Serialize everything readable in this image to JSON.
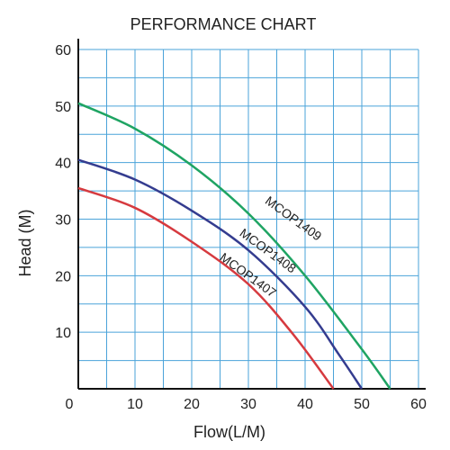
{
  "chart_data": {
    "type": "line",
    "title": "PERFORMANCE CHART",
    "xlabel": "Flow(L/M)",
    "ylabel": "Head (M)",
    "xlim": [
      0,
      60
    ],
    "ylim": [
      0,
      60
    ],
    "x_ticks": [
      0,
      10,
      20,
      30,
      40,
      50,
      60
    ],
    "y_ticks": [
      10,
      20,
      30,
      40,
      50,
      60
    ],
    "origin_label": "0",
    "grid": true,
    "grid_color": "#4aa3d9",
    "series": [
      {
        "name": "MCOP1409",
        "color": "#1fa463",
        "points": [
          [
            0,
            50.5
          ],
          [
            10,
            46
          ],
          [
            20,
            39.5
          ],
          [
            30,
            31
          ],
          [
            40,
            20
          ],
          [
            50,
            7
          ],
          [
            55,
            0
          ]
        ]
      },
      {
        "name": "MCOP1408",
        "color": "#343c8f",
        "points": [
          [
            0,
            40.5
          ],
          [
            10,
            37
          ],
          [
            20,
            31.5
          ],
          [
            30,
            24.5
          ],
          [
            40,
            14.5
          ],
          [
            46,
            6
          ],
          [
            50,
            0
          ]
        ]
      },
      {
        "name": "MCOP1407",
        "color": "#d63a3f",
        "points": [
          [
            0,
            35.5
          ],
          [
            10,
            32
          ],
          [
            20,
            26
          ],
          [
            30,
            18.5
          ],
          [
            38,
            9.5
          ],
          [
            45,
            0
          ]
        ]
      }
    ]
  }
}
